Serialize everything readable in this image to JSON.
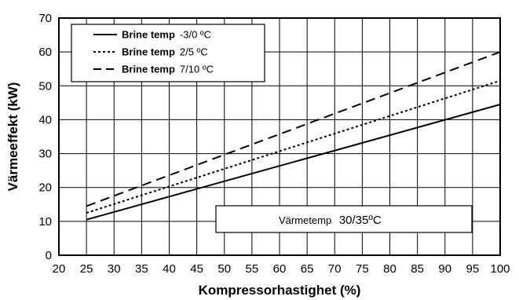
{
  "chart_data": {
    "type": "line",
    "xlabel": "Kompressorhastighet (%)",
    "ylabel": "Värmeeffekt (kW)",
    "xlim": [
      20,
      100
    ],
    "ylim": [
      0,
      70
    ],
    "x_ticks": [
      20,
      25,
      30,
      35,
      40,
      45,
      50,
      55,
      60,
      65,
      70,
      75,
      80,
      85,
      90,
      95,
      100
    ],
    "y_ticks": [
      0,
      10,
      20,
      30,
      40,
      50,
      60,
      70
    ],
    "grid": true,
    "legend_position": "top-left",
    "series": [
      {
        "name_bold": "Brine temp",
        "name_value": "-3/0 ºC",
        "dash": "solid",
        "x": [
          25,
          100
        ],
        "y": [
          10.5,
          44.5
        ]
      },
      {
        "name_bold": "Brine temp",
        "name_value": "2/5 ºC",
        "dash": "dotted",
        "x": [
          25,
          100
        ],
        "y": [
          12.5,
          51.5
        ]
      },
      {
        "name_bold": "Brine temp",
        "name_value": "7/10 ºC",
        "dash": "dashed",
        "x": [
          25,
          100
        ],
        "y": [
          14.5,
          60
        ]
      }
    ],
    "annotation": {
      "label": "Värmetemp",
      "value": "30/35ºC"
    }
  }
}
